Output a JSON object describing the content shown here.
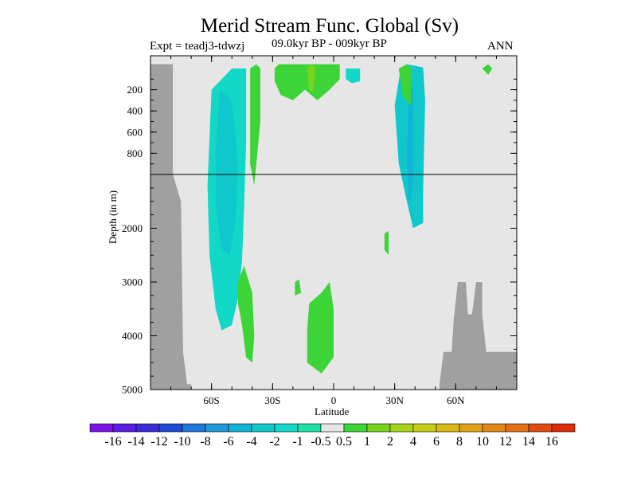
{
  "chart_data": {
    "type": "heatmap",
    "title": "Merid Stream Func. Global (Sv)",
    "experiment_label": "Expt = teadj3-tdwzj",
    "period_label": "09.0kyr BP - 009kyr BP",
    "season_label": "ANN",
    "xlabel": "Latitude",
    "ylabel": "Depth (in m)",
    "xlim": [
      -90,
      90
    ],
    "ylim": [
      5000,
      0
    ],
    "x_ticks": [
      {
        "value": -60,
        "label": "60S"
      },
      {
        "value": -30,
        "label": "30S"
      },
      {
        "value": 0,
        "label": "0"
      },
      {
        "value": 30,
        "label": "30N"
      },
      {
        "value": 60,
        "label": "60N"
      }
    ],
    "y_ticks_upper": [
      {
        "value": 200,
        "label": "200"
      },
      {
        "value": 400,
        "label": "400"
      },
      {
        "value": 600,
        "label": "600"
      },
      {
        "value": 800,
        "label": "800"
      }
    ],
    "y_ticks_lower": [
      {
        "value": 2000,
        "label": "2000"
      },
      {
        "value": 3000,
        "label": "3000"
      },
      {
        "value": 4000,
        "label": "4000"
      },
      {
        "value": 5000,
        "label": "5000"
      }
    ],
    "depth_axis_break": 1000,
    "colorbar": {
      "labels": [
        "-16",
        "-14",
        "-12",
        "-10",
        "-8",
        "-6",
        "-4",
        "-2",
        "-1",
        "-0.5",
        "0.5",
        "1",
        "2",
        "4",
        "6",
        "8",
        "10",
        "12",
        "14",
        "16"
      ],
      "colors": [
        "#7b14e6",
        "#5a1ee0",
        "#3c2ad8",
        "#1e4ad6",
        "#1e78d8",
        "#1e9ada",
        "#12b4d6",
        "#10c8cc",
        "#12d8c8",
        "#20e0a8",
        "#e6e6e6",
        "#3cd436",
        "#7ad41c",
        "#a8d418",
        "#c8cc14",
        "#dcb814",
        "#e0a214",
        "#e28a14",
        "#e27014",
        "#e04c10",
        "#dc2c0a"
      ]
    },
    "background_color": "#e6e6e6",
    "land_mask_color": "#a0a0a0",
    "regions": [
      {
        "name": "southern-cell",
        "value": -1.5,
        "color": "#12d8c8",
        "outline": [
          [
            -60,
            200
          ],
          [
            -50,
            0
          ],
          [
            -43,
            0
          ],
          [
            -43,
            100
          ],
          [
            -43,
            700
          ],
          [
            -44,
            1600
          ],
          [
            -45,
            2600
          ],
          [
            -47,
            3300
          ],
          [
            -50,
            3800
          ],
          [
            -55,
            3900
          ],
          [
            -58,
            3500
          ],
          [
            -61,
            2500
          ],
          [
            -62,
            1200
          ]
        ]
      },
      {
        "name": "southern-cell-core",
        "value": -2,
        "color": "#10c8cc",
        "outline": [
          [
            -58,
            800
          ],
          [
            -56,
            200
          ],
          [
            -50,
            300
          ],
          [
            -47,
            900
          ],
          [
            -48,
            1800
          ],
          [
            -51,
            2500
          ],
          [
            -55,
            2400
          ],
          [
            -58,
            1600
          ]
        ]
      },
      {
        "name": "southern-deep-positive",
        "value": 0.8,
        "color": "#3cd436",
        "outline": [
          [
            -47,
            3000
          ],
          [
            -44,
            2700
          ],
          [
            -40,
            3200
          ],
          [
            -39,
            4000
          ],
          [
            -40,
            4500
          ],
          [
            -43,
            4400
          ],
          [
            -45,
            3800
          ],
          [
            -47,
            3400
          ]
        ]
      },
      {
        "name": "southern-upper-positive",
        "value": 0.8,
        "color": "#3cd436",
        "outline": [
          [
            -41,
            0
          ],
          [
            -38,
            -40
          ],
          [
            -36,
            0
          ],
          [
            -36,
            500
          ],
          [
            -39,
            1200
          ],
          [
            -41,
            900
          ]
        ]
      },
      {
        "name": "tropical-surface-positive",
        "value": 1.2,
        "color": "#3cd436",
        "outline": [
          [
            -29,
            0
          ],
          [
            -27,
            -40
          ],
          [
            3,
            -40
          ],
          [
            3,
            100
          ],
          [
            -2,
            200
          ],
          [
            -8,
            300
          ],
          [
            -14,
            200
          ],
          [
            -20,
            300
          ],
          [
            -26,
            250
          ],
          [
            -29,
            120
          ]
        ]
      },
      {
        "name": "tropical-surface-core",
        "value": 2,
        "color": "#7ad41c",
        "outline": [
          [
            -13,
            0
          ],
          [
            -11,
            -40
          ],
          [
            -9,
            0
          ],
          [
            -10,
            220
          ],
          [
            -12,
            200
          ]
        ]
      },
      {
        "name": "tropical-surface-negative",
        "value": -1,
        "color": "#12d8c8",
        "outline": [
          [
            6,
            0
          ],
          [
            13,
            0
          ],
          [
            13,
            120
          ],
          [
            9,
            140
          ],
          [
            6,
            100
          ]
        ]
      },
      {
        "name": "deep-positive-equator",
        "value": 0.8,
        "color": "#3cd436",
        "outline": [
          [
            -13,
            3900
          ],
          [
            -12,
            3400
          ],
          [
            -6,
            3200
          ],
          [
            -2,
            3000
          ],
          [
            0,
            3500
          ],
          [
            0,
            4400
          ],
          [
            -6,
            4700
          ],
          [
            -13,
            4500
          ]
        ]
      },
      {
        "name": "northern-cell",
        "value": -2,
        "color": "#10c8cc",
        "outline": [
          [
            33,
            0
          ],
          [
            36,
            -40
          ],
          [
            44,
            -10
          ],
          [
            45,
            300
          ],
          [
            44,
            1300
          ],
          [
            44,
            1900
          ],
          [
            39,
            2000
          ],
          [
            36,
            1500
          ],
          [
            32,
            900
          ],
          [
            30,
            350
          ]
        ]
      },
      {
        "name": "northern-cell-core",
        "value": -4,
        "color": "#12b4d6",
        "outline": [
          [
            37,
            100
          ],
          [
            39,
            200
          ],
          [
            39,
            1200
          ],
          [
            37,
            1600
          ],
          [
            36,
            900
          ]
        ]
      },
      {
        "name": "north-upper-positive",
        "value": 0.8,
        "color": "#3cd436",
        "outline": [
          [
            32,
            0
          ],
          [
            36,
            -40
          ],
          [
            38,
            0
          ],
          [
            38,
            350
          ],
          [
            34,
            260
          ]
        ]
      },
      {
        "name": "arctic-positive",
        "value": 1.2,
        "color": "#3cd436",
        "outline": [
          [
            73,
            0
          ],
          [
            76,
            -40
          ],
          [
            78,
            0
          ],
          [
            76,
            60
          ]
        ]
      },
      {
        "name": "small-positive-20s",
        "value": 0.7,
        "color": "#3cd436",
        "outline": [
          [
            -19,
            3000
          ],
          [
            -17,
            2950
          ],
          [
            -16,
            3200
          ],
          [
            -19,
            3250
          ]
        ]
      },
      {
        "name": "small-positive-30n",
        "value": 0.7,
        "color": "#3cd436",
        "outline": [
          [
            25,
            2100
          ],
          [
            27,
            2050
          ],
          [
            27,
            2500
          ],
          [
            25,
            2400
          ]
        ]
      }
    ],
    "land_polygons": [
      {
        "name": "antarctica",
        "outline": [
          [
            -90,
            -40
          ],
          [
            -79,
            -40
          ],
          [
            -79,
            1000
          ],
          [
            -75,
            1500
          ],
          [
            -74,
            4300
          ],
          [
            -72,
            4900
          ],
          [
            -70,
            4900
          ],
          [
            -70,
            5200
          ],
          [
            -90,
            5200
          ]
        ]
      },
      {
        "name": "arctic-shelf",
        "outline": [
          [
            52,
            5200
          ],
          [
            52,
            4900
          ],
          [
            54,
            4300
          ],
          [
            58,
            4300
          ],
          [
            59,
            3700
          ],
          [
            61,
            3000
          ],
          [
            65,
            3000
          ],
          [
            66,
            3600
          ],
          [
            68,
            3600
          ],
          [
            70,
            3000
          ],
          [
            73,
            3000
          ],
          [
            73,
            3600
          ],
          [
            75,
            4300
          ],
          [
            90,
            4300
          ],
          [
            90,
            5200
          ]
        ]
      }
    ]
  }
}
